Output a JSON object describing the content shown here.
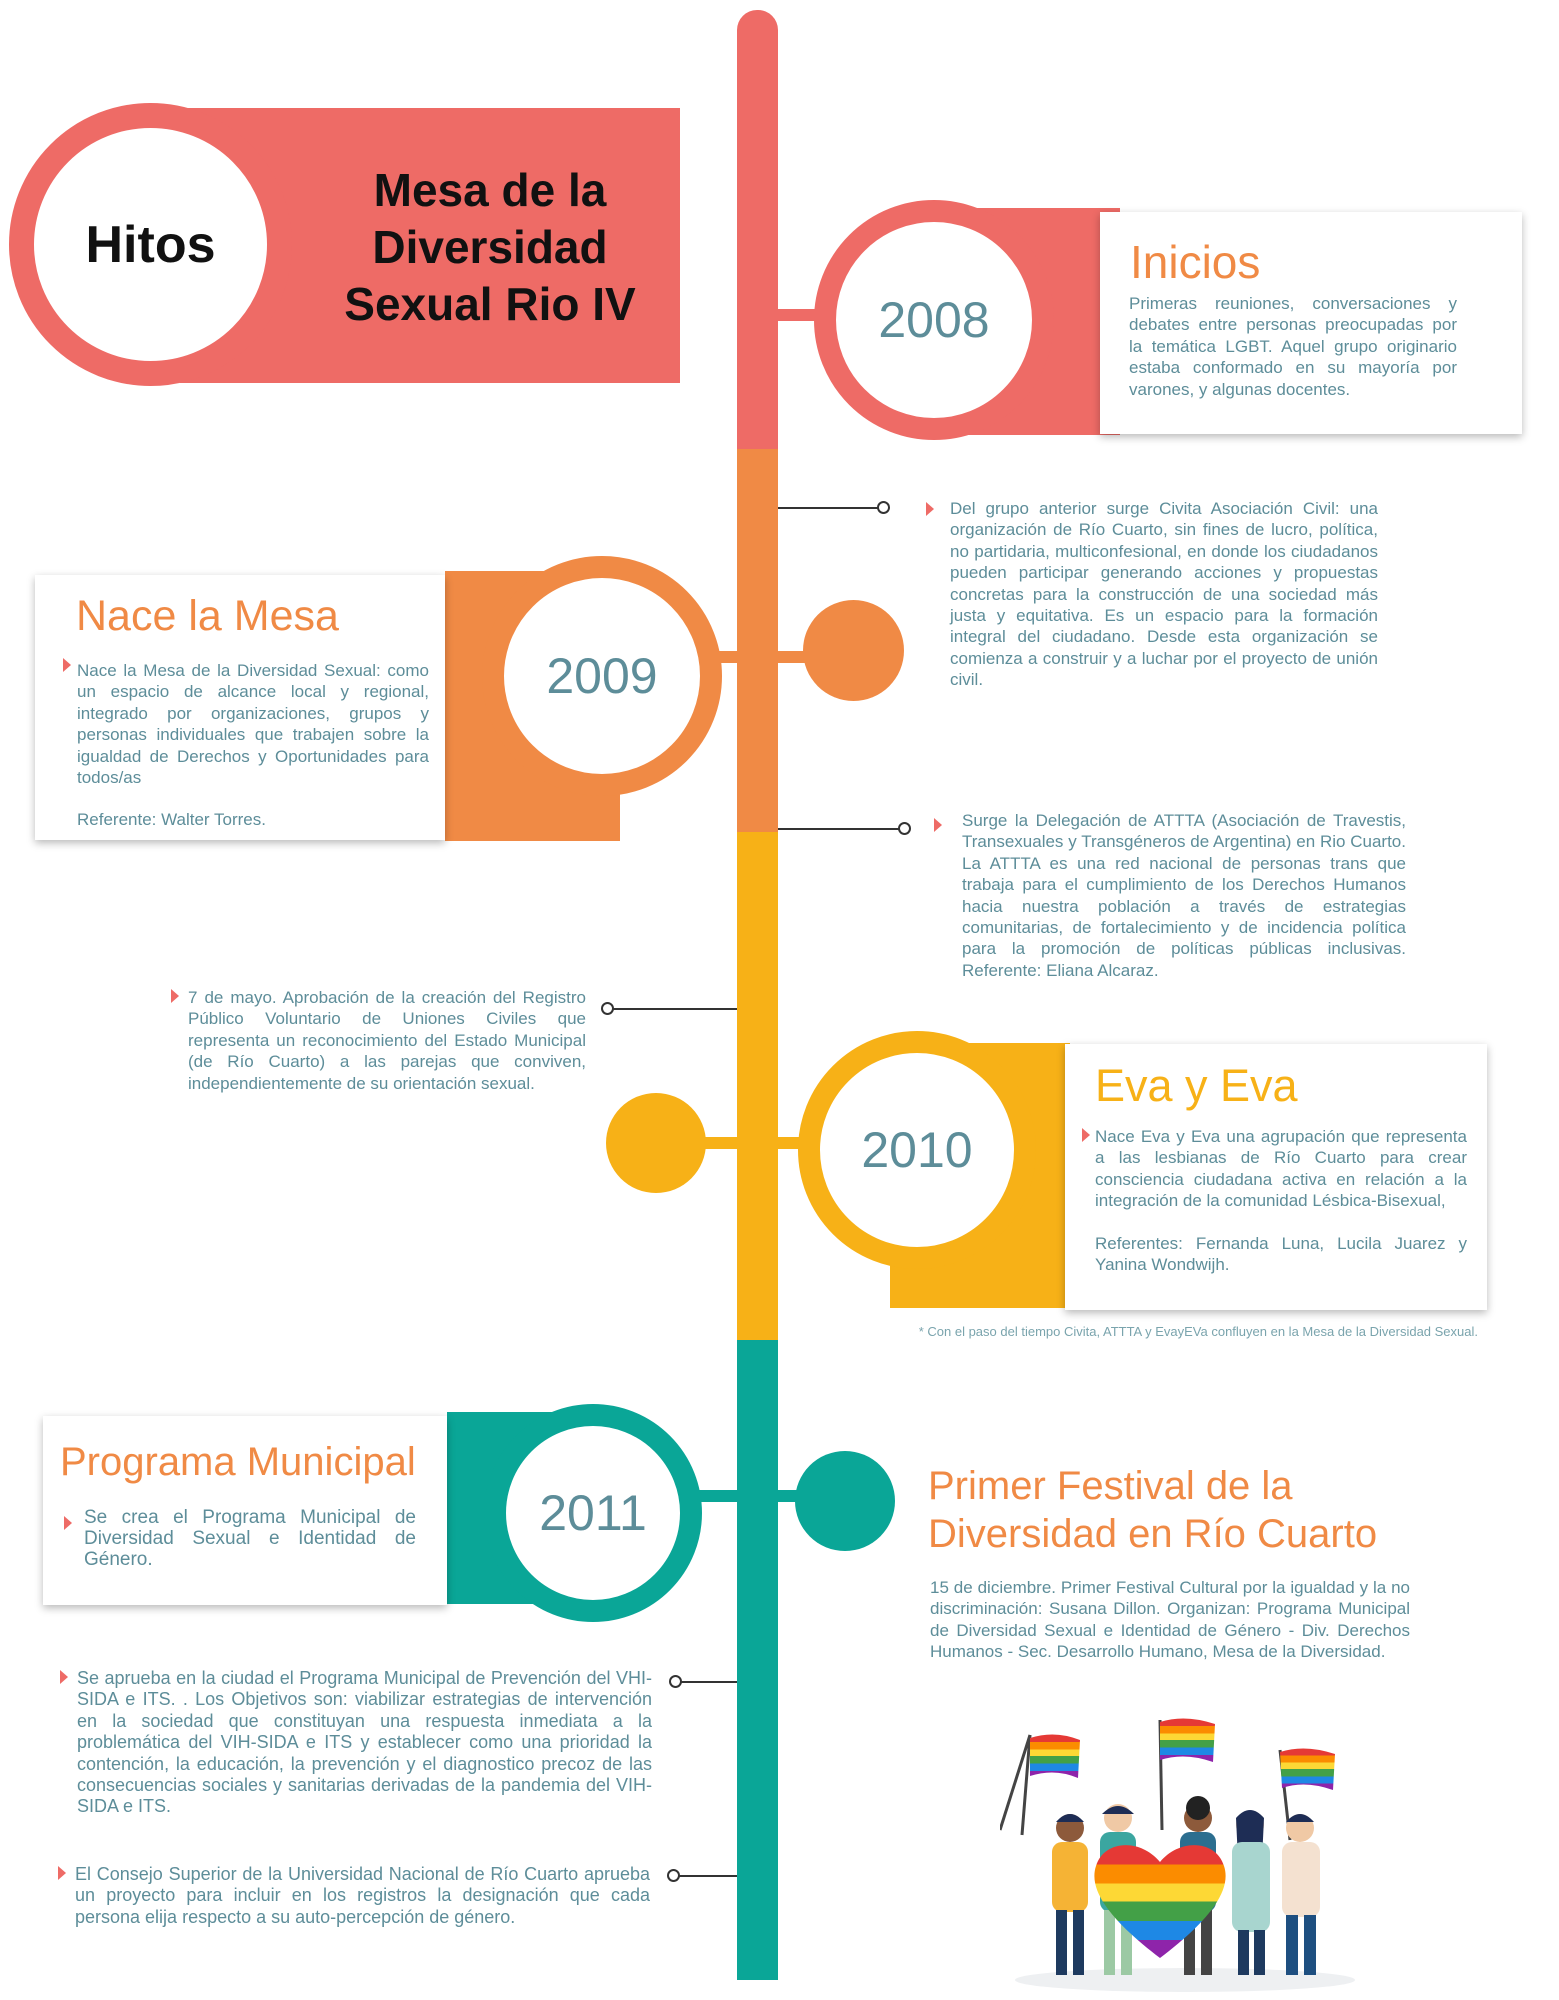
{
  "header": {
    "badge": "Hitos",
    "title_line1": "Mesa de la",
    "title_line2": "Diversidad",
    "title_line3": "Sexual Rio IV"
  },
  "colors": {
    "coral": "#ee6b66",
    "orange": "#f08a45",
    "yellow": "#f7b117",
    "teal": "#0aa697",
    "text": "#5d8d99"
  },
  "milestones": {
    "m2008": {
      "year": "2008",
      "title": "Inicios",
      "text": "Primeras reuniones, conversaciones y debates entre personas preocupadas por la temática LGBT. Aquel grupo originario estaba conformado en su mayoría por varones, y algunas docentes."
    },
    "m2009": {
      "year": "2009",
      "title": "Nace la Mesa",
      "text": "Nace la Mesa de la Diversidad Sexual: como un espacio de alcance local y regional, integrado por organizaciones, grupos y personas individuales que trabajen sobre la igualdad de Derechos y Oportunidades para todos/as",
      "referente": "Referente: Walter Torres."
    },
    "m2010": {
      "year": "2010",
      "title": "Eva y Eva",
      "text": "Nace Eva y Eva una agrupación que representa a las lesbianas de Río Cuarto para crear consciencia ciudadana activa en relación a la integración de la comunidad Lésbica-Bisexual,",
      "referentes": "Referentes: Fernanda Luna, Lucila Juarez y Yanina Wondwijh."
    },
    "m2011": {
      "year": "2011",
      "title": "Programa Municipal",
      "text": "Se crea el Programa Municipal de Diversidad Sexual e Identidad de Género."
    }
  },
  "notes": {
    "civita": "Del grupo anterior surge Civita Asociación Civil: una organización de Río Cuarto, sin fines de lucro, política, no partidaria, multiconfesional, en donde los ciudadanos pueden participar generando acciones y propuestas concretas para la construcción de una sociedad más justa y equitativa. Es un espacio para la formación integral del ciudadano. Desde esta organización se comienza a construir y a luchar por el proyecto de unión civil.",
    "attta": "Surge la Delegación de ATTTA (Asociación de Travestis, Transexuales y Transgéneros de Argentina) en Rio Cuarto. La ATTTA es una red nacional de personas trans que trabaja para el cumplimiento de los Derechos Humanos hacia nuestra población a través de estrategias comunitarias, de fortalecimiento y de incidencia política para la promoción de políticas públicas inclusivas. Referente: Eliana Alcaraz.",
    "registro": "7 de mayo. Aprobación de la creación del Registro Público Voluntario de Uniones Civiles que representa un reconocimiento del Estado Municipal (de Río Cuarto) a las parejas que conviven, independientemente de su orientación sexual.",
    "footnote": "* Con el paso del tiempo Civita, ATTTA y EvayEVa confluyen en la Mesa de la Diversidad Sexual.",
    "festival_title_line1": "Primer Festival de la",
    "festival_title_line2": "Diversidad en Río Cuarto",
    "festival_text": "15 de diciembre. Primer Festival Cultural por la igualdad y la no discriminación: Susana Dillon. Organizan: Programa Municipal de Diversidad Sexual e Identidad de Género - Div. Derechos Humanos - Sec. Desarrollo Humano, Mesa de la Diversidad.",
    "vih": "Se aprueba en la ciudad el Programa Municipal de Prevención del VHI-SIDA e ITS. . Los Objetivos son: viabilizar estrategias de intervención en la sociedad que constituyan una respuesta inmediata a la problemática del VIH-SIDA e ITS y establecer como una prioridad la contención, la educación, la prevención y el diagnostico precoz de las consecuencias sociales y sanitarias derivadas de la pandemia del VIH-SIDA e ITS.",
    "unrc": "El Consejo Superior de la Universidad Nacional de Río Cuarto aprueba un proyecto para incluir en los registros la designación que cada persona elija respecto a su auto-percepción de género."
  }
}
